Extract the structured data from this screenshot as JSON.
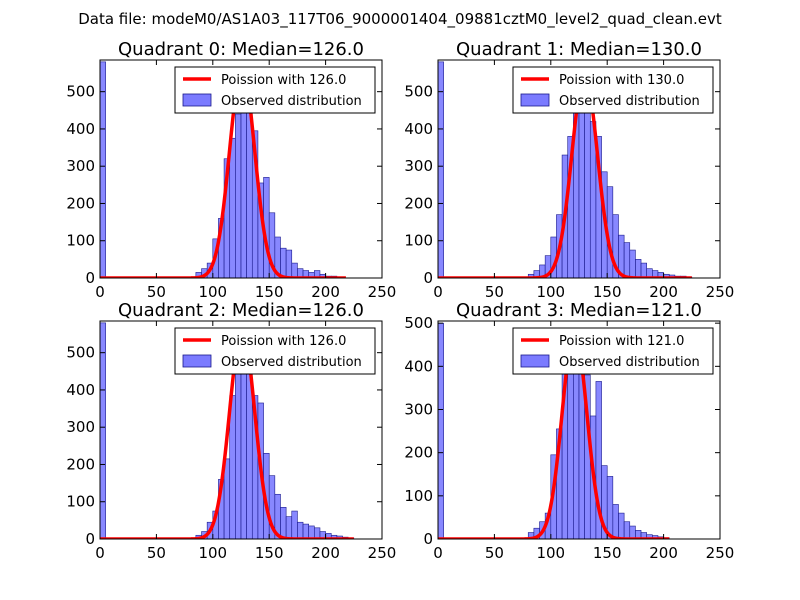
{
  "suptitle": "Data file: modeM0/AS1A03_117T06_9000001404_09881cztM0_level2_quad_clean.evt",
  "colors": {
    "bar_fill": "#7b7bff",
    "bar_edge": "#1a1a8c",
    "poisson_line": "#ff0000",
    "background": "#ffffff",
    "axes": "#000000"
  },
  "chart_data": [
    {
      "type": "bar",
      "title": "Quadrant 0: Median=126.0",
      "median": 126.0,
      "xlim": [
        0,
        250
      ],
      "ylim": [
        0,
        585
      ],
      "xticks": [
        0,
        50,
        100,
        150,
        200,
        250
      ],
      "yticks": [
        0,
        100,
        200,
        300,
        400,
        500
      ],
      "bin_width": 5,
      "bins": [
        {
          "x": 0,
          "count": 580
        },
        {
          "x": 85,
          "count": 15
        },
        {
          "x": 90,
          "count": 25
        },
        {
          "x": 95,
          "count": 40
        },
        {
          "x": 100,
          "count": 105
        },
        {
          "x": 105,
          "count": 160
        },
        {
          "x": 110,
          "count": 320
        },
        {
          "x": 115,
          "count": 375
        },
        {
          "x": 120,
          "count": 440
        },
        {
          "x": 125,
          "count": 560
        },
        {
          "x": 130,
          "count": 450
        },
        {
          "x": 135,
          "count": 395
        },
        {
          "x": 140,
          "count": 255
        },
        {
          "x": 145,
          "count": 270
        },
        {
          "x": 150,
          "count": 175
        },
        {
          "x": 155,
          "count": 110
        },
        {
          "x": 160,
          "count": 80
        },
        {
          "x": 165,
          "count": 75
        },
        {
          "x": 170,
          "count": 40
        },
        {
          "x": 175,
          "count": 25
        },
        {
          "x": 180,
          "count": 20
        },
        {
          "x": 185,
          "count": 15
        },
        {
          "x": 190,
          "count": 20
        },
        {
          "x": 195,
          "count": 10
        },
        {
          "x": 200,
          "count": 5
        },
        {
          "x": 205,
          "count": 5
        },
        {
          "x": 210,
          "count": 3
        }
      ],
      "poisson": {
        "mean": 126.0,
        "peak": 560,
        "x_range": [
          0,
          218
        ]
      },
      "legend": [
        "Poission with 126.0",
        "Observed distribution"
      ],
      "legend_loc": "upper-right"
    },
    {
      "type": "bar",
      "title": "Quadrant 1: Median=130.0",
      "median": 130.0,
      "xlim": [
        0,
        250
      ],
      "ylim": [
        0,
        585
      ],
      "xticks": [
        0,
        50,
        100,
        150,
        200,
        250
      ],
      "yticks": [
        0,
        100,
        200,
        300,
        400,
        500
      ],
      "bin_width": 5,
      "bins": [
        {
          "x": 0,
          "count": 580
        },
        {
          "x": 80,
          "count": 10
        },
        {
          "x": 85,
          "count": 20
        },
        {
          "x": 90,
          "count": 35
        },
        {
          "x": 95,
          "count": 60
        },
        {
          "x": 100,
          "count": 110
        },
        {
          "x": 105,
          "count": 170
        },
        {
          "x": 110,
          "count": 330
        },
        {
          "x": 115,
          "count": 380
        },
        {
          "x": 120,
          "count": 445
        },
        {
          "x": 125,
          "count": 470
        },
        {
          "x": 130,
          "count": 545
        },
        {
          "x": 135,
          "count": 420
        },
        {
          "x": 140,
          "count": 380
        },
        {
          "x": 145,
          "count": 285
        },
        {
          "x": 150,
          "count": 245
        },
        {
          "x": 155,
          "count": 170
        },
        {
          "x": 160,
          "count": 115
        },
        {
          "x": 165,
          "count": 95
        },
        {
          "x": 170,
          "count": 75
        },
        {
          "x": 175,
          "count": 50
        },
        {
          "x": 180,
          "count": 40
        },
        {
          "x": 185,
          "count": 25
        },
        {
          "x": 190,
          "count": 20
        },
        {
          "x": 195,
          "count": 15
        },
        {
          "x": 200,
          "count": 10
        },
        {
          "x": 205,
          "count": 8
        },
        {
          "x": 210,
          "count": 5
        },
        {
          "x": 215,
          "count": 5
        },
        {
          "x": 220,
          "count": 3
        }
      ],
      "poisson": {
        "mean": 130.0,
        "peak": 545,
        "x_range": [
          0,
          225
        ]
      },
      "legend": [
        "Poission with 130.0",
        "Observed distribution"
      ],
      "legend_loc": "upper-right"
    },
    {
      "type": "bar",
      "title": "Quadrant 2: Median=126.0",
      "median": 126.0,
      "xlim": [
        0,
        250
      ],
      "ylim": [
        0,
        585
      ],
      "xticks": [
        0,
        50,
        100,
        150,
        200,
        250
      ],
      "yticks": [
        0,
        100,
        200,
        300,
        400,
        500
      ],
      "bin_width": 5,
      "bins": [
        {
          "x": 0,
          "count": 580
        },
        {
          "x": 85,
          "count": 10
        },
        {
          "x": 90,
          "count": 20
        },
        {
          "x": 95,
          "count": 45
        },
        {
          "x": 100,
          "count": 75
        },
        {
          "x": 105,
          "count": 160
        },
        {
          "x": 110,
          "count": 215
        },
        {
          "x": 115,
          "count": 385
        },
        {
          "x": 120,
          "count": 455
        },
        {
          "x": 125,
          "count": 565
        },
        {
          "x": 130,
          "count": 555
        },
        {
          "x": 135,
          "count": 385
        },
        {
          "x": 140,
          "count": 365
        },
        {
          "x": 145,
          "count": 230
        },
        {
          "x": 150,
          "count": 170
        },
        {
          "x": 155,
          "count": 120
        },
        {
          "x": 160,
          "count": 85
        },
        {
          "x": 165,
          "count": 60
        },
        {
          "x": 170,
          "count": 75
        },
        {
          "x": 175,
          "count": 45
        },
        {
          "x": 180,
          "count": 40
        },
        {
          "x": 185,
          "count": 35
        },
        {
          "x": 190,
          "count": 30
        },
        {
          "x": 195,
          "count": 20
        },
        {
          "x": 200,
          "count": 15
        },
        {
          "x": 205,
          "count": 10
        },
        {
          "x": 210,
          "count": 8
        },
        {
          "x": 215,
          "count": 5
        },
        {
          "x": 220,
          "count": 3
        }
      ],
      "poisson": {
        "mean": 126.0,
        "peak": 560,
        "x_range": [
          0,
          225
        ]
      },
      "legend": [
        "Poission with 126.0",
        "Observed distribution"
      ],
      "legend_loc": "upper-right"
    },
    {
      "type": "bar",
      "title": "Quadrant 3: Median=121.0",
      "median": 121.0,
      "xlim": [
        0,
        250
      ],
      "ylim": [
        0,
        505
      ],
      "xticks": [
        0,
        50,
        100,
        150,
        200,
        250
      ],
      "yticks": [
        0,
        100,
        200,
        300,
        400,
        500
      ],
      "bin_width": 5,
      "bins": [
        {
          "x": 0,
          "count": 500
        },
        {
          "x": 80,
          "count": 15
        },
        {
          "x": 85,
          "count": 25
        },
        {
          "x": 90,
          "count": 40
        },
        {
          "x": 95,
          "count": 60
        },
        {
          "x": 100,
          "count": 195
        },
        {
          "x": 105,
          "count": 255
        },
        {
          "x": 110,
          "count": 390
        },
        {
          "x": 115,
          "count": 460
        },
        {
          "x": 120,
          "count": 475
        },
        {
          "x": 125,
          "count": 475
        },
        {
          "x": 130,
          "count": 380
        },
        {
          "x": 135,
          "count": 285
        },
        {
          "x": 140,
          "count": 365
        },
        {
          "x": 145,
          "count": 170
        },
        {
          "x": 150,
          "count": 145
        },
        {
          "x": 155,
          "count": 80
        },
        {
          "x": 160,
          "count": 60
        },
        {
          "x": 165,
          "count": 40
        },
        {
          "x": 170,
          "count": 30
        },
        {
          "x": 175,
          "count": 20
        },
        {
          "x": 180,
          "count": 15
        },
        {
          "x": 185,
          "count": 10
        },
        {
          "x": 190,
          "count": 8
        },
        {
          "x": 195,
          "count": 5
        },
        {
          "x": 200,
          "count": 3
        }
      ],
      "poisson": {
        "mean": 121.0,
        "peak": 480,
        "x_range": [
          0,
          205
        ]
      },
      "legend": [
        "Poission with 121.0",
        "Observed distribution"
      ],
      "legend_loc": "upper-right"
    }
  ]
}
